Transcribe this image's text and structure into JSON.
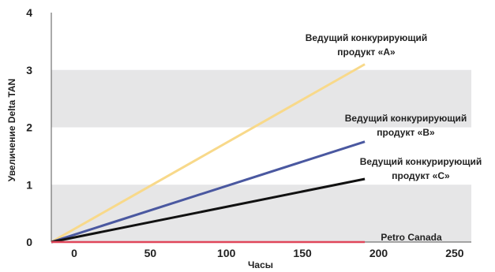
{
  "chart_data": {
    "type": "line",
    "title": "",
    "xlabel": "Часы",
    "ylabel": "Увеличение Delta TAN",
    "xlim": [
      -14,
      262
    ],
    "ylim": [
      0,
      4
    ],
    "x_ticks": [
      0,
      50,
      100,
      150,
      200,
      250
    ],
    "y_ticks": [
      0,
      1,
      2,
      3,
      4
    ],
    "grid": "alternating horizontal bands",
    "band_color": "#e6e6e7",
    "legend": "none; series labeled directly on the plot",
    "series": [
      {
        "label_lines": [
          "Ведущий конкурирующий",
          "продукт «A»"
        ],
        "color": "#f8d98a",
        "points": [
          [
            -14,
            0
          ],
          [
            192,
            3.1
          ]
        ]
      },
      {
        "label_lines": [
          "Ведущий конкурирующий",
          "продукт «B»"
        ],
        "color": "#4a58a0",
        "points": [
          [
            -14,
            0
          ],
          [
            192,
            1.75
          ]
        ]
      },
      {
        "label_lines": [
          "Ведущий конкурирующий",
          "продукт «C»"
        ],
        "color": "#111111",
        "points": [
          [
            -14,
            0
          ],
          [
            192,
            1.1
          ]
        ]
      },
      {
        "label_lines": [
          "Petro Canada"
        ],
        "color": "#e0465a",
        "points": [
          [
            -14,
            0
          ],
          [
            192,
            0
          ]
        ]
      }
    ]
  }
}
